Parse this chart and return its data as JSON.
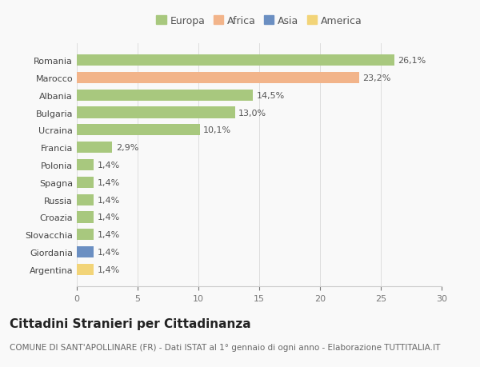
{
  "countries": [
    "Romania",
    "Marocco",
    "Albania",
    "Bulgaria",
    "Ucraina",
    "Francia",
    "Polonia",
    "Spagna",
    "Russia",
    "Croazia",
    "Slovacchia",
    "Giordania",
    "Argentina"
  ],
  "values": [
    26.1,
    23.2,
    14.5,
    13.0,
    10.1,
    2.9,
    1.4,
    1.4,
    1.4,
    1.4,
    1.4,
    1.4,
    1.4
  ],
  "labels": [
    "26,1%",
    "23,2%",
    "14,5%",
    "13,0%",
    "10,1%",
    "2,9%",
    "1,4%",
    "1,4%",
    "1,4%",
    "1,4%",
    "1,4%",
    "1,4%",
    "1,4%"
  ],
  "continents": [
    "Europa",
    "Africa",
    "Europa",
    "Europa",
    "Europa",
    "Europa",
    "Europa",
    "Europa",
    "Europa",
    "Europa",
    "Europa",
    "Asia",
    "America"
  ],
  "colors": {
    "Europa": "#a8c87e",
    "Africa": "#f2b48a",
    "Asia": "#6b8fc2",
    "America": "#f2d478"
  },
  "legend_order": [
    "Europa",
    "Africa",
    "Asia",
    "America"
  ],
  "xlim": [
    0,
    30
  ],
  "xticks": [
    0,
    5,
    10,
    15,
    20,
    25,
    30
  ],
  "title": "Cittadini Stranieri per Cittadinanza",
  "subtitle": "COMUNE DI SANT'APOLLINARE (FR) - Dati ISTAT al 1° gennaio di ogni anno - Elaborazione TUTTITALIA.IT",
  "background_color": "#f9f9f9",
  "bar_height": 0.65,
  "title_fontsize": 11,
  "subtitle_fontsize": 7.5,
  "label_fontsize": 8,
  "tick_fontsize": 8,
  "legend_fontsize": 9
}
